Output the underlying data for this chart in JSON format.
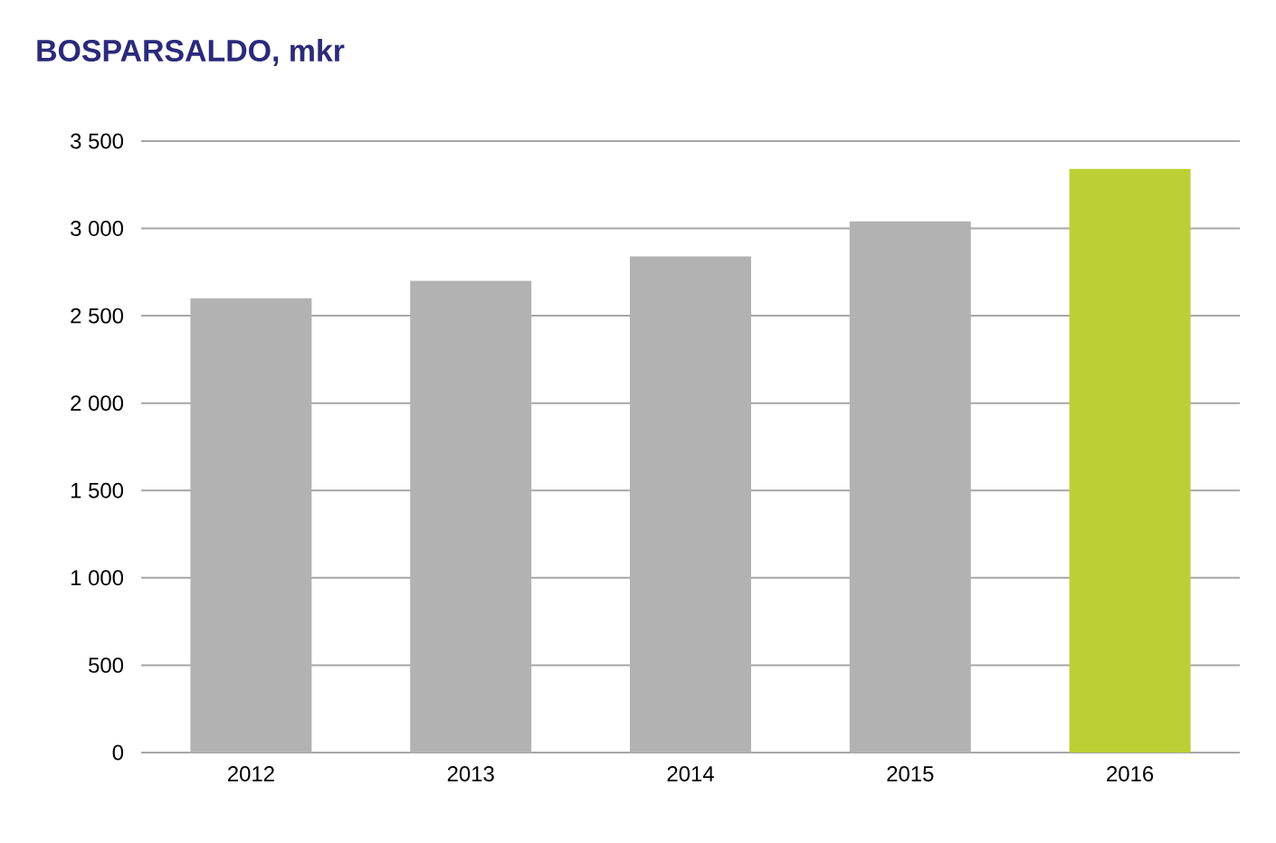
{
  "chart_data": {
    "type": "bar",
    "title": "BOSPARSALDO, mkr",
    "categories": [
      "2012",
      "2013",
      "2014",
      "2015",
      "2016"
    ],
    "values": [
      2600,
      2700,
      2840,
      3040,
      3340
    ],
    "colors": [
      "#b2b2b2",
      "#b2b2b2",
      "#b2b2b2",
      "#b2b2b2",
      "#bcd035"
    ],
    "ylim": [
      0,
      3500
    ],
    "yticks": [
      0,
      500,
      {
        "value": 1000,
        "label": "1 000"
      },
      {
        "value": 1500,
        "label": "1 500"
      },
      {
        "value": 2000,
        "label": "2 000"
      },
      {
        "value": 2500,
        "label": "2 500"
      },
      {
        "value": 3000,
        "label": "3 000"
      },
      {
        "value": 3500,
        "label": "3 500"
      }
    ],
    "grid": "y"
  }
}
